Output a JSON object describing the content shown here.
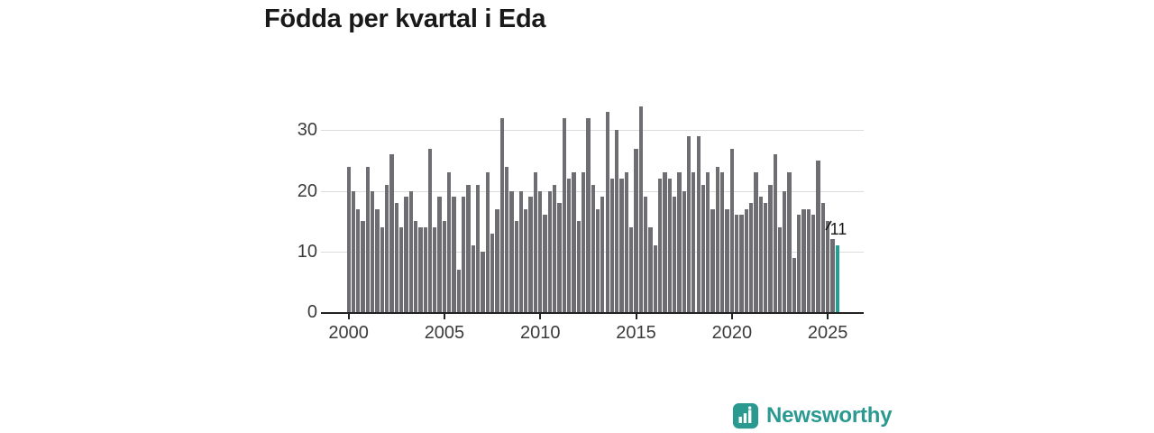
{
  "title": "Födda per kvartal i Eda",
  "annotation": {
    "label": "11"
  },
  "logo": {
    "text": "Newsworthy"
  },
  "colors": {
    "bar": "#6e6d72",
    "highlight": "#1fa296",
    "grid": "#dcdcdc",
    "axis": "#222222",
    "tick_text": "#3b3b3b",
    "title_text": "#191919",
    "logo_teal": "#2a9a91"
  },
  "chart_data": {
    "type": "bar",
    "title": "Födda per kvartal i Eda",
    "xlabel": "",
    "ylabel": "",
    "x_start": "2000-Q1",
    "x_end": "2025-Q3",
    "x_tick_labels": [
      "2000",
      "2005",
      "2010",
      "2015",
      "2020",
      "2025"
    ],
    "y_ticks": [
      0,
      10,
      20,
      30
    ],
    "ylim": [
      0,
      36
    ],
    "grid": "horizontal",
    "legend": "none",
    "highlight_last_bar": true,
    "last_bar_label": "11",
    "series": [
      {
        "name": "Födda per kvartal",
        "values": [
          24,
          20,
          17,
          15,
          24,
          20,
          17,
          14,
          21,
          26,
          18,
          14,
          19,
          20,
          15,
          14,
          14,
          27,
          14,
          19,
          15,
          23,
          19,
          7,
          19,
          21,
          11,
          21,
          10,
          23,
          13,
          17,
          32,
          24,
          20,
          15,
          20,
          17,
          19,
          23,
          20,
          16,
          20,
          21,
          18,
          32,
          22,
          23,
          15,
          23,
          32,
          21,
          17,
          19,
          33,
          22,
          30,
          22,
          23,
          14,
          27,
          34,
          19,
          14,
          11,
          22,
          23,
          22,
          19,
          23,
          20,
          29,
          23,
          29,
          21,
          23,
          17,
          24,
          23,
          17,
          27,
          16,
          16,
          17,
          18,
          23,
          19,
          18,
          21,
          26,
          14,
          20,
          23,
          9,
          16,
          17,
          17,
          16,
          25,
          18,
          15,
          12,
          11
        ]
      }
    ]
  }
}
